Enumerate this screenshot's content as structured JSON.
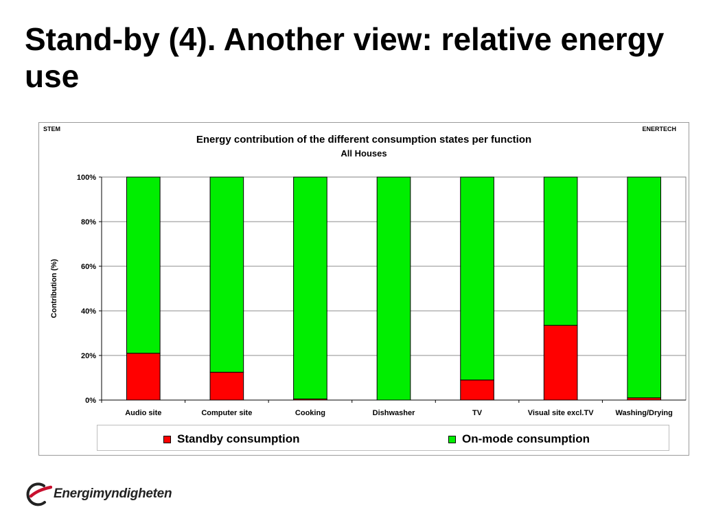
{
  "slide": {
    "title": "Stand-by (4). Another view: relative energy use"
  },
  "chart_header": {
    "left_label": "STEM",
    "right_label": "ENERTECH"
  },
  "chart_data": {
    "type": "bar",
    "stacked": true,
    "title": "Energy contribution of the different consumption states per function",
    "subtitle": "All Houses",
    "xlabel": "",
    "ylabel": "Contribution (%)",
    "ylim": [
      0,
      100
    ],
    "yticks": [
      "0%",
      "20%",
      "40%",
      "60%",
      "80%",
      "100%"
    ],
    "ytick_values": [
      0,
      20,
      40,
      60,
      80,
      100
    ],
    "grid": true,
    "legend_position": "bottom",
    "categories": [
      "Audio site",
      "Computer site",
      "Cooking",
      "Dishwasher",
      "TV",
      "Visual site excl.TV",
      "Washing/Drying"
    ],
    "series": [
      {
        "name": "Standby consumption",
        "color": "#ff0000",
        "values": [
          21,
          12.5,
          0.5,
          0,
          9,
          33.5,
          1
        ]
      },
      {
        "name": "On-mode consumption",
        "color": "#00ee00",
        "values": [
          79,
          87.5,
          99.5,
          100,
          91,
          66.5,
          99
        ]
      }
    ]
  },
  "logo": {
    "text": "Energimyndigheten",
    "color": "#c8102e"
  }
}
